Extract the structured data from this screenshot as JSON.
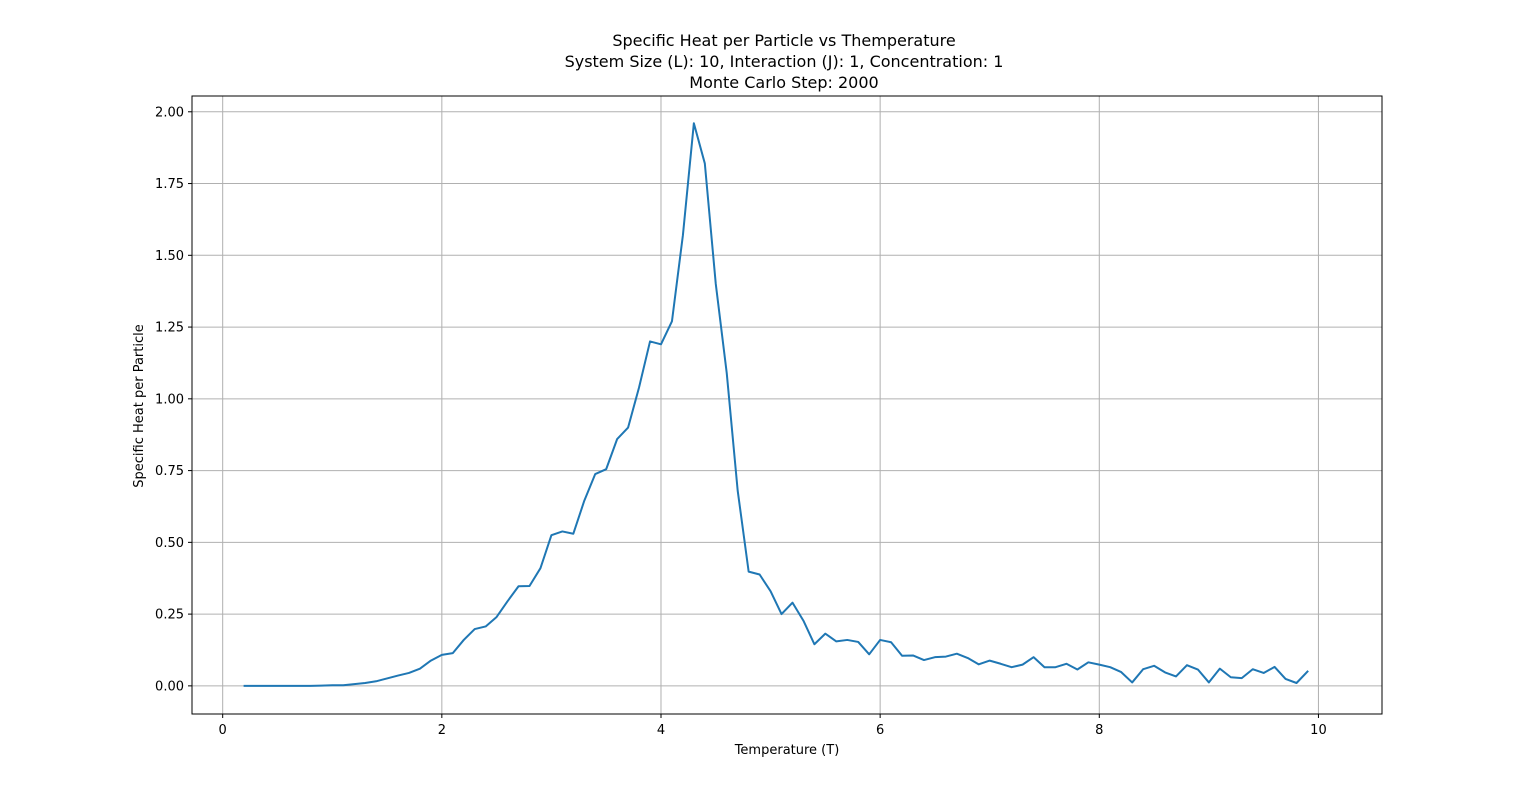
{
  "chart_data": {
    "type": "line",
    "title_lines": [
      "Specific Heat per Particle vs Themperature",
      "System Size (L): 10, Interaction (J): 1, Concentration: 1",
      "Monte Carlo Step: 2000"
    ],
    "xlabel": "Temperature (T)",
    "ylabel": "Specific Heat per Particle",
    "xlim": [
      -0.28,
      10.58
    ],
    "ylim": [
      -0.098,
      2.055
    ],
    "xticks": [
      0,
      2,
      4,
      6,
      8,
      10
    ],
    "xtick_labels": [
      "0",
      "2",
      "4",
      "6",
      "8",
      "10"
    ],
    "yticks": [
      0,
      0.25,
      0.5,
      0.75,
      1.0,
      1.25,
      1.5,
      1.75,
      2.0
    ],
    "ytick_labels": [
      "0.00",
      "0.25",
      "0.50",
      "0.75",
      "1.00",
      "1.25",
      "1.50",
      "1.75",
      "2.00"
    ],
    "grid": true,
    "series": [
      {
        "color": "#1f77b4",
        "x": [
          0.2,
          0.3,
          0.4,
          0.5,
          0.6,
          0.7,
          0.8,
          0.9,
          1.0,
          1.1,
          1.2,
          1.3,
          1.4,
          1.5,
          1.6,
          1.7,
          1.8,
          1.9,
          2.0,
          2.1,
          2.2,
          2.3,
          2.4,
          2.5,
          2.6,
          2.7,
          2.8,
          2.9,
          3.0,
          3.1,
          3.2,
          3.3,
          3.4,
          3.5,
          3.6,
          3.7,
          3.8,
          3.9,
          4.0,
          4.1,
          4.2,
          4.3,
          4.4,
          4.5,
          4.6,
          4.7,
          4.8,
          4.9,
          5.0,
          5.1,
          5.2,
          5.3,
          5.4,
          5.5,
          5.6,
          5.7,
          5.8,
          5.9,
          6.0,
          6.1,
          6.2,
          6.3,
          6.4,
          6.5,
          6.6,
          6.7,
          6.8,
          6.9,
          7.0,
          7.1,
          7.2,
          7.3,
          7.4,
          7.5,
          7.6,
          7.7,
          7.8,
          7.9,
          8.0,
          8.1,
          8.2,
          8.3,
          8.4,
          8.5,
          8.6,
          8.7,
          8.8,
          8.9,
          9.0,
          9.1,
          9.2,
          9.3,
          9.4,
          9.5,
          9.6,
          9.7,
          9.8,
          9.9
        ],
        "values": [
          0.0,
          0.0,
          0.0,
          0.0,
          0.0,
          0.0,
          0.0,
          0.001,
          0.002,
          0.002,
          0.006,
          0.01,
          0.016,
          0.026,
          0.036,
          0.045,
          0.06,
          0.088,
          0.108,
          0.114,
          0.16,
          0.198,
          0.207,
          0.24,
          0.295,
          0.347,
          0.348,
          0.41,
          0.525,
          0.538,
          0.53,
          0.645,
          0.738,
          0.755,
          0.86,
          0.9,
          1.04,
          1.2,
          1.19,
          1.27,
          1.57,
          1.96,
          1.82,
          1.4,
          1.09,
          0.68,
          0.398,
          0.388,
          0.33,
          0.25,
          0.29,
          0.227,
          0.145,
          0.182,
          0.155,
          0.16,
          0.153,
          0.11,
          0.16,
          0.152,
          0.105,
          0.106,
          0.09,
          0.1,
          0.102,
          0.112,
          0.097,
          0.075,
          0.088,
          0.077,
          0.065,
          0.074,
          0.1,
          0.065,
          0.065,
          0.077,
          0.057,
          0.082,
          0.074,
          0.065,
          0.048,
          0.012,
          0.058,
          0.07,
          0.047,
          0.033,
          0.072,
          0.057,
          0.012,
          0.06,
          0.03,
          0.027,
          0.058,
          0.045,
          0.066,
          0.024,
          0.01,
          0.05
        ]
      }
    ]
  }
}
